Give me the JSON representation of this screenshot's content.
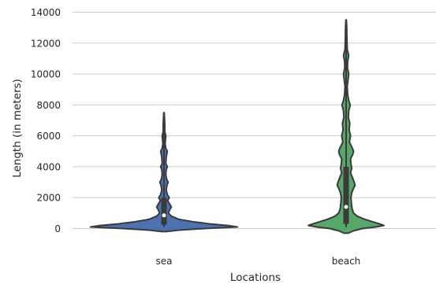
{
  "chart_data": {
    "type": "violin",
    "title": "",
    "xlabel": "Locations",
    "ylabel": "Length (in meters)",
    "categories": [
      "sea",
      "beach"
    ],
    "ylim": [
      -1200,
      14000
    ],
    "yticks": [
      0,
      2000,
      4000,
      6000,
      8000,
      10000,
      12000,
      14000
    ],
    "grid": "horizontal",
    "colors": {
      "sea": "#4c72b0",
      "beach": "#55a868",
      "outline": "#3a3a3a",
      "grid": "#cccccc"
    },
    "violins": [
      {
        "category": "sea",
        "range": [
          -200,
          7500
        ],
        "median": 850,
        "q1": 250,
        "q3": 2000,
        "whisker": [
          100,
          7400
        ],
        "density": [
          [
            -200,
            0.03
          ],
          [
            -100,
            0.2
          ],
          [
            0,
            0.55
          ],
          [
            100,
            0.99
          ],
          [
            200,
            0.86
          ],
          [
            300,
            0.62
          ],
          [
            450,
            0.38
          ],
          [
            600,
            0.2
          ],
          [
            800,
            0.1
          ],
          [
            1000,
            0.06
          ],
          [
            1200,
            0.075
          ],
          [
            1400,
            0.1
          ],
          [
            1600,
            0.075
          ],
          [
            1800,
            0.05
          ],
          [
            2000,
            0.07
          ],
          [
            2200,
            0.045
          ],
          [
            2500,
            0.03
          ],
          [
            2800,
            0.04
          ],
          [
            3000,
            0.055
          ],
          [
            3200,
            0.035
          ],
          [
            3500,
            0.025
          ],
          [
            3800,
            0.03
          ],
          [
            4000,
            0.045
          ],
          [
            4200,
            0.025
          ],
          [
            4600,
            0.03
          ],
          [
            5000,
            0.045
          ],
          [
            5200,
            0.025
          ],
          [
            5500,
            0.015
          ],
          [
            6000,
            0.025
          ],
          [
            6300,
            0.01
          ],
          [
            6700,
            0.012
          ],
          [
            7000,
            0.008
          ],
          [
            7500,
            0.003
          ]
        ]
      },
      {
        "category": "beach",
        "range": [
          -300,
          13500
        ],
        "median": 1400,
        "q1": 300,
        "q3": 4000,
        "whisker": [
          100,
          13300
        ],
        "density": [
          [
            -300,
            0.03
          ],
          [
            -150,
            0.1
          ],
          [
            0,
            0.22
          ],
          [
            100,
            0.4
          ],
          [
            200,
            0.51
          ],
          [
            300,
            0.45
          ],
          [
            450,
            0.35
          ],
          [
            600,
            0.25
          ],
          [
            800,
            0.15
          ],
          [
            1000,
            0.1
          ],
          [
            1300,
            0.08
          ],
          [
            1700,
            0.07
          ],
          [
            2000,
            0.065
          ],
          [
            2300,
            0.075
          ],
          [
            2600,
            0.1
          ],
          [
            2800,
            0.12
          ],
          [
            3000,
            0.11
          ],
          [
            3300,
            0.085
          ],
          [
            3600,
            0.06
          ],
          [
            3900,
            0.075
          ],
          [
            4200,
            0.065
          ],
          [
            4500,
            0.06
          ],
          [
            4800,
            0.09
          ],
          [
            5000,
            0.1
          ],
          [
            5200,
            0.085
          ],
          [
            5600,
            0.045
          ],
          [
            6000,
            0.06
          ],
          [
            6400,
            0.04
          ],
          [
            6800,
            0.05
          ],
          [
            7200,
            0.03
          ],
          [
            7600,
            0.035
          ],
          [
            8000,
            0.055
          ],
          [
            8300,
            0.035
          ],
          [
            8700,
            0.02
          ],
          [
            9200,
            0.015
          ],
          [
            9600,
            0.025
          ],
          [
            10000,
            0.035
          ],
          [
            10400,
            0.018
          ],
          [
            10800,
            0.02
          ],
          [
            11200,
            0.035
          ],
          [
            11600,
            0.015
          ],
          [
            12100,
            0.012
          ],
          [
            12600,
            0.01
          ],
          [
            13000,
            0.008
          ],
          [
            13500,
            0.003
          ]
        ]
      }
    ]
  }
}
